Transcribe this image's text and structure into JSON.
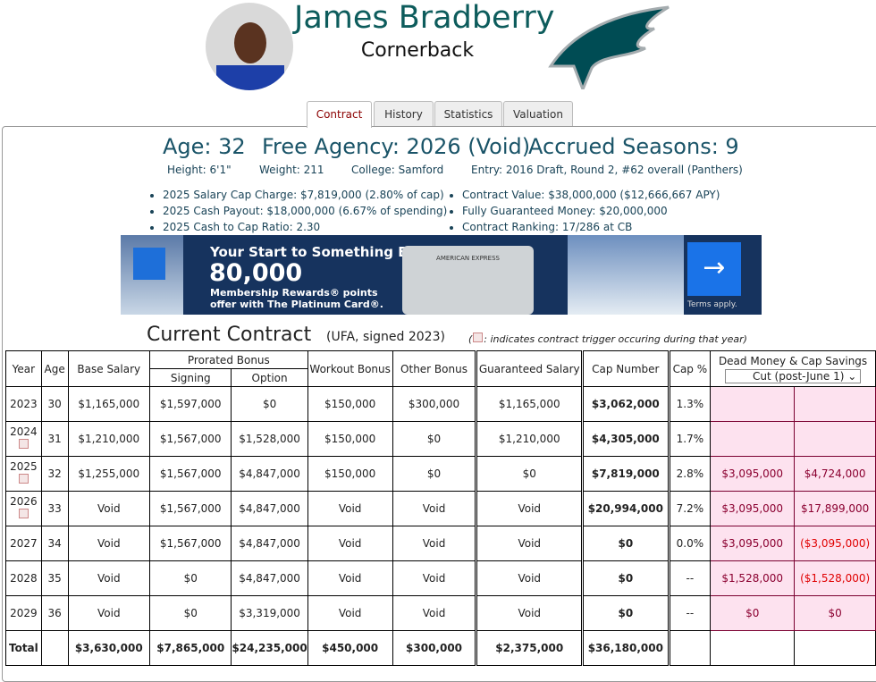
{
  "header": {
    "name": "James Bradberry",
    "position": "Cornerback"
  },
  "tabs": [
    "Contract",
    "History",
    "Statistics",
    "Valuation"
  ],
  "summary": {
    "age": "Age: 32",
    "free_agency": "Free Agency: 2026 (Void)",
    "accrued": "Accrued Seasons: 9"
  },
  "details": [
    "Height: 6'1\"",
    "Weight: 211",
    "College: Samford",
    "Entry: 2016 Draft, Round 2, #62 overall (Panthers)"
  ],
  "bullets_left": [
    "2025 Salary Cap Charge: $7,819,000 (2.80% of cap)",
    "2025 Cash Payout: $18,000,000 (6.67% of spending)",
    "2025 Cash to Cap Ratio: 2.30"
  ],
  "bullets_right": [
    "Contract Value: $38,000,000 ($12,666,667 APY)",
    "Fully Guaranteed Money: $20,000,000",
    "Contract Ranking: 17/286 at CB"
  ],
  "ad": {
    "headline": "Your Start to Something Epic",
    "points": "80,000",
    "line1": "Membership Rewards® points",
    "line2": "offer with The Platinum Card®.",
    "card": "AMERICAN EXPRESS",
    "terms": "Terms apply."
  },
  "contract": {
    "title": "Current Contract",
    "subtitle": "(UFA, signed 2023)",
    "note_open": "(",
    "note": ": indicates contract trigger occuring during that year)"
  },
  "table": {
    "headers": {
      "year": "Year",
      "age": "Age",
      "base": "Base Salary",
      "prorated": "Prorated Bonus",
      "signing": "Signing",
      "option": "Option",
      "workout": "Workout Bonus",
      "other": "Other Bonus",
      "guaranteed": "Guaranteed Salary",
      "cap": "Cap Number",
      "cap_pct": "Cap %",
      "dead": "Dead Money & Cap Savings",
      "select": "Cut (post-June 1)"
    },
    "rows": [
      {
        "trigger": false,
        "cells": [
          "2023",
          "30",
          "$1,165,000",
          "$1,597,000",
          "$0",
          "$150,000",
          "$300,000",
          "$1,165,000",
          "$3,062,000",
          "1.3%",
          null,
          null
        ]
      },
      {
        "trigger": true,
        "cells": [
          "2024",
          "31",
          "$1,210,000",
          "$1,567,000",
          "$1,528,000",
          "$150,000",
          "$0",
          "$1,210,000",
          "$4,305,000",
          "1.7%",
          null,
          null
        ]
      },
      {
        "trigger": true,
        "cells": [
          "2025",
          "32",
          "$1,255,000",
          "$1,567,000",
          "$4,847,000",
          "$150,000",
          "$0",
          "$0",
          "$7,819,000",
          "2.8%",
          "$3,095,000",
          "$4,724,000"
        ]
      },
      {
        "trigger": true,
        "cells": [
          "2026",
          "33",
          "Void",
          "$1,567,000",
          "$4,847,000",
          "Void",
          "Void",
          "Void",
          "$20,994,000",
          "7.2%",
          "$3,095,000",
          "$17,899,000"
        ]
      },
      {
        "trigger": false,
        "cells": [
          "2027",
          "34",
          "Void",
          "$1,567,000",
          "$4,847,000",
          "Void",
          "Void",
          "Void",
          "$0",
          "0.0%",
          "$3,095,000",
          "($3,095,000)"
        ]
      },
      {
        "trigger": false,
        "cells": [
          "2028",
          "35",
          "Void",
          "$0",
          "$4,847,000",
          "Void",
          "Void",
          "Void",
          "$0",
          "--",
          "$1,528,000",
          "($1,528,000)"
        ]
      },
      {
        "trigger": false,
        "cells": [
          "2029",
          "36",
          "Void",
          "$0",
          "$3,319,000",
          "Void",
          "Void",
          "Void",
          "$0",
          "--",
          "$0",
          "$0"
        ]
      },
      {
        "trigger": false,
        "cells": [
          "Total",
          null,
          "$3,630,000",
          "$7,865,000",
          "$24,235,000",
          "$450,000",
          "$300,000",
          "$2,375,000",
          "$36,180,000",
          null,
          null,
          null
        ]
      }
    ]
  }
}
